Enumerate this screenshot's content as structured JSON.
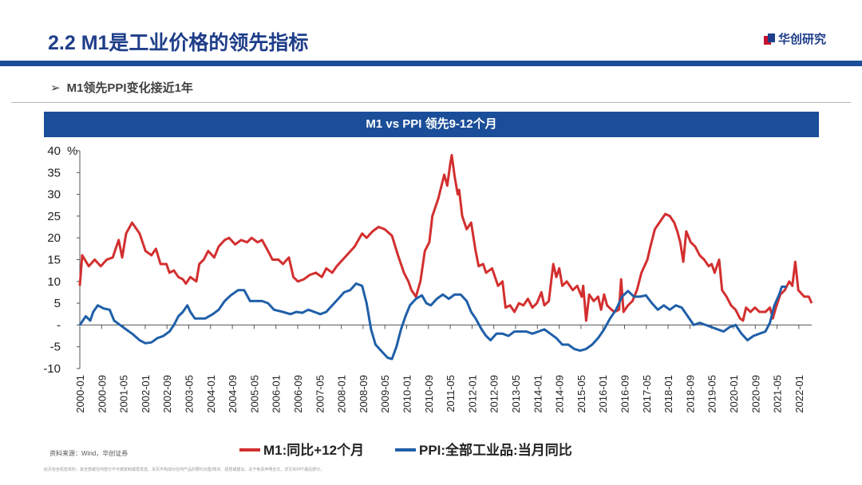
{
  "header": {
    "title": "2.2 M1是工业价格的领先指标",
    "logo_text": "华创研究",
    "subtitle": "M1领先PPI变化接近1年",
    "subtitle_marker": "➢"
  },
  "colors": {
    "brand": "#1b4e99",
    "title": "#1f3e8a",
    "m1": "#d32f2f",
    "ppi": "#1f5fa8"
  },
  "chart_data": {
    "type": "line",
    "title": "M1 vs PPI 领先9-12个月",
    "ylabel_unit": "%",
    "ylim": [
      -10,
      40
    ],
    "yticks": [
      {
        "v": 40,
        "label": "40"
      },
      {
        "v": 35,
        "label": "35"
      },
      {
        "v": 30,
        "label": "30"
      },
      {
        "v": 25,
        "label": "25"
      },
      {
        "v": 20,
        "label": "20"
      },
      {
        "v": 15,
        "label": "15"
      },
      {
        "v": 10,
        "label": "10"
      },
      {
        "v": 5,
        "label": "5"
      },
      {
        "v": 0,
        "label": "-"
      },
      {
        "v": -5,
        "label": "-5"
      },
      {
        "v": -10,
        "label": "-10"
      }
    ],
    "x_categories": [
      "2000-01",
      "2000-09",
      "2001-05",
      "2002-01",
      "2002-09",
      "2003-05",
      "2004-01",
      "2004-09",
      "2005-05",
      "2006-01",
      "2006-09",
      "2007-05",
      "2008-01",
      "2008-09",
      "2009-05",
      "2010-01",
      "2010-09",
      "2011-05",
      "2012-01",
      "2012-09",
      "2013-05",
      "2014-01",
      "2014-09",
      "2015-05",
      "2016-01",
      "2016-09",
      "2017-05",
      "2018-01",
      "2018-09",
      "2019-05",
      "2020-01",
      "2020-09",
      "2021-05",
      "2022-01"
    ],
    "series": [
      {
        "name": "M1:同比+12个月",
        "color": "#d32f2f",
        "points": [
          [
            2000.0,
            9
          ],
          [
            2000.08,
            16
          ],
          [
            2000.3,
            13.5
          ],
          [
            2000.5,
            15
          ],
          [
            2000.7,
            13.5
          ],
          [
            2000.9,
            15
          ],
          [
            2001.1,
            15.5
          ],
          [
            2001.3,
            19.5
          ],
          [
            2001.42,
            15.5
          ],
          [
            2001.55,
            21
          ],
          [
            2001.75,
            23.5
          ],
          [
            2002.0,
            21
          ],
          [
            2002.2,
            17
          ],
          [
            2002.4,
            16
          ],
          [
            2002.55,
            17.5
          ],
          [
            2002.7,
            14
          ],
          [
            2002.9,
            14
          ],
          [
            2003.0,
            12
          ],
          [
            2003.15,
            12.5
          ],
          [
            2003.3,
            11
          ],
          [
            2003.45,
            10.5
          ],
          [
            2003.55,
            9.5
          ],
          [
            2003.7,
            11
          ],
          [
            2003.9,
            10
          ],
          [
            2004.0,
            14
          ],
          [
            2004.15,
            15
          ],
          [
            2004.3,
            17
          ],
          [
            2004.5,
            15.5
          ],
          [
            2004.65,
            18
          ],
          [
            2004.85,
            19.5
          ],
          [
            2005.0,
            20
          ],
          [
            2005.2,
            18.5
          ],
          [
            2005.4,
            19.5
          ],
          [
            2005.6,
            19
          ],
          [
            2005.75,
            20
          ],
          [
            2005.95,
            19
          ],
          [
            2006.1,
            19.5
          ],
          [
            2006.3,
            17
          ],
          [
            2006.45,
            15
          ],
          [
            2006.65,
            15
          ],
          [
            2006.8,
            14
          ],
          [
            2007.0,
            15.5
          ],
          [
            2007.15,
            11
          ],
          [
            2007.3,
            10
          ],
          [
            2007.5,
            10.5
          ],
          [
            2007.7,
            11.5
          ],
          [
            2007.9,
            12
          ],
          [
            2008.1,
            11
          ],
          [
            2008.25,
            13
          ],
          [
            2008.45,
            12
          ],
          [
            2008.6,
            13.5
          ],
          [
            2008.8,
            15
          ],
          [
            2009.0,
            16.5
          ],
          [
            2009.2,
            18
          ],
          [
            2009.45,
            21
          ],
          [
            2009.6,
            20
          ],
          [
            2009.8,
            21.5
          ],
          [
            2010.0,
            22.5
          ],
          [
            2010.2,
            22
          ],
          [
            2010.45,
            20.5
          ],
          [
            2010.65,
            16
          ],
          [
            2010.85,
            12
          ],
          [
            2011.0,
            10
          ],
          [
            2011.1,
            8
          ],
          [
            2011.25,
            6.5
          ],
          [
            2011.4,
            10
          ],
          [
            2011.55,
            17
          ],
          [
            2011.7,
            19
          ],
          [
            2011.8,
            25
          ],
          [
            2012.0,
            29
          ],
          [
            2012.2,
            34.5
          ],
          [
            2012.3,
            32
          ],
          [
            2012.4,
            37
          ],
          [
            2012.45,
            39
          ],
          [
            2012.55,
            34
          ],
          [
            2012.65,
            30
          ],
          [
            2012.7,
            31
          ],
          [
            2012.8,
            25
          ],
          [
            2012.95,
            22
          ],
          [
            2013.1,
            23.5
          ],
          [
            2013.25,
            17
          ],
          [
            2013.35,
            13.5
          ],
          [
            2013.5,
            14
          ],
          [
            2013.6,
            12
          ],
          [
            2013.8,
            13
          ],
          [
            2014.0,
            9
          ],
          [
            2014.15,
            10
          ],
          [
            2014.25,
            4
          ],
          [
            2014.4,
            4.5
          ],
          [
            2014.55,
            3
          ],
          [
            2014.7,
            5
          ],
          [
            2014.85,
            4.5
          ],
          [
            2015.0,
            6
          ],
          [
            2015.15,
            4
          ],
          [
            2015.3,
            5
          ],
          [
            2015.45,
            7.5
          ],
          [
            2015.55,
            4.5
          ],
          [
            2015.7,
            5.5
          ],
          [
            2015.85,
            14
          ],
          [
            2015.95,
            11
          ],
          [
            2016.05,
            13
          ],
          [
            2016.15,
            9
          ],
          [
            2016.3,
            10
          ],
          [
            2016.5,
            8
          ],
          [
            2016.65,
            9
          ],
          [
            2016.8,
            6.5
          ],
          [
            2016.85,
            9
          ],
          [
            2016.95,
            1
          ],
          [
            2017.05,
            7
          ],
          [
            2017.2,
            5.5
          ],
          [
            2017.35,
            6.5
          ],
          [
            2017.45,
            3.5
          ],
          [
            2017.55,
            7
          ],
          [
            2017.65,
            4.5
          ],
          [
            2017.8,
            3.5
          ],
          [
            2017.9,
            3
          ],
          [
            2018.05,
            3.5
          ],
          [
            2018.12,
            10.5
          ],
          [
            2018.2,
            3
          ],
          [
            2018.35,
            4.5
          ],
          [
            2018.5,
            5.5
          ],
          [
            2018.65,
            8
          ],
          [
            2018.8,
            12
          ],
          [
            2019.0,
            15
          ],
          [
            2019.1,
            18
          ],
          [
            2019.25,
            22
          ],
          [
            2019.45,
            24
          ],
          [
            2019.6,
            25.5
          ],
          [
            2019.75,
            25
          ],
          [
            2019.9,
            23.5
          ],
          [
            2020.0,
            21.5
          ],
          [
            2020.1,
            19
          ],
          [
            2020.2,
            14.5
          ],
          [
            2020.3,
            21.5
          ],
          [
            2020.45,
            19
          ],
          [
            2020.6,
            18
          ],
          [
            2020.75,
            16
          ],
          [
            2020.9,
            15
          ],
          [
            2021.05,
            13.5
          ],
          [
            2021.15,
            14
          ],
          [
            2021.25,
            12
          ],
          [
            2021.4,
            15
          ],
          [
            2021.5,
            8
          ],
          [
            2021.65,
            6.5
          ],
          [
            2021.8,
            4.5
          ],
          [
            2021.95,
            3.5
          ],
          [
            2022.1,
            1.5
          ],
          [
            2022.2,
            1
          ],
          [
            2022.3,
            4
          ],
          [
            2022.45,
            3
          ],
          [
            2022.6,
            4
          ],
          [
            2022.75,
            3
          ],
          [
            2022.95,
            3
          ],
          [
            2023.1,
            4
          ],
          [
            2023.2,
            1.5
          ],
          [
            2023.3,
            4
          ],
          [
            2023.45,
            7
          ],
          [
            2023.6,
            8
          ],
          [
            2023.75,
            10
          ],
          [
            2023.85,
            9
          ],
          [
            2023.95,
            14.5
          ],
          [
            2024.05,
            8
          ],
          [
            2024.25,
            6.5
          ],
          [
            2024.4,
            6.5
          ],
          [
            2024.5,
            5
          ]
        ]
      },
      {
        "name": "PPI:全部工业品:当月同比",
        "color": "#1f5fa8",
        "points": [
          [
            2000.0,
            0
          ],
          [
            2000.2,
            2
          ],
          [
            2000.35,
            1
          ],
          [
            2000.45,
            3
          ],
          [
            2000.6,
            4.5
          ],
          [
            2000.8,
            3.8
          ],
          [
            2001.0,
            3.5
          ],
          [
            2001.15,
            1
          ],
          [
            2001.35,
            0
          ],
          [
            2001.55,
            -1
          ],
          [
            2001.75,
            -2
          ],
          [
            2002.0,
            -3.5
          ],
          [
            2002.2,
            -4.2
          ],
          [
            2002.4,
            -4
          ],
          [
            2002.6,
            -3
          ],
          [
            2002.8,
            -2.5
          ],
          [
            2003.0,
            -1.5
          ],
          [
            2003.15,
            0
          ],
          [
            2003.3,
            2
          ],
          [
            2003.45,
            3
          ],
          [
            2003.6,
            4.5
          ],
          [
            2003.7,
            3
          ],
          [
            2003.85,
            1.5
          ],
          [
            2004.0,
            1.5
          ],
          [
            2004.2,
            1.5
          ],
          [
            2004.45,
            2.5
          ],
          [
            2004.65,
            3.5
          ],
          [
            2004.85,
            5.5
          ],
          [
            2005.05,
            6.8
          ],
          [
            2005.3,
            8
          ],
          [
            2005.5,
            8
          ],
          [
            2005.7,
            5.5
          ],
          [
            2005.9,
            5.5
          ],
          [
            2006.1,
            5.5
          ],
          [
            2006.3,
            5
          ],
          [
            2006.5,
            3.5
          ],
          [
            2006.8,
            3
          ],
          [
            2007.05,
            2.5
          ],
          [
            2007.25,
            3
          ],
          [
            2007.45,
            2.8
          ],
          [
            2007.65,
            3.5
          ],
          [
            2007.85,
            3
          ],
          [
            2008.05,
            2.5
          ],
          [
            2008.25,
            3
          ],
          [
            2008.45,
            4.5
          ],
          [
            2008.65,
            6
          ],
          [
            2008.85,
            7.5
          ],
          [
            2009.05,
            8
          ],
          [
            2009.25,
            9.5
          ],
          [
            2009.45,
            9
          ],
          [
            2009.6,
            5
          ],
          [
            2009.75,
            -1
          ],
          [
            2009.9,
            -4.5
          ],
          [
            2010.1,
            -6
          ],
          [
            2010.3,
            -7.5
          ],
          [
            2010.45,
            -7.8
          ],
          [
            2010.6,
            -5
          ],
          [
            2010.75,
            -1
          ],
          [
            2010.9,
            2
          ],
          [
            2011.05,
            4.5
          ],
          [
            2011.25,
            6
          ],
          [
            2011.45,
            6.8
          ],
          [
            2011.6,
            5
          ],
          [
            2011.75,
            4.5
          ],
          [
            2011.95,
            6
          ],
          [
            2012.15,
            7
          ],
          [
            2012.35,
            6
          ],
          [
            2012.55,
            7
          ],
          [
            2012.75,
            7
          ],
          [
            2012.95,
            5.5
          ],
          [
            2013.1,
            3
          ],
          [
            2013.25,
            1.5
          ],
          [
            2013.45,
            -1
          ],
          [
            2013.6,
            -2.5
          ],
          [
            2013.75,
            -3.5
          ],
          [
            2013.95,
            -2
          ],
          [
            2014.15,
            -2
          ],
          [
            2014.35,
            -2.5
          ],
          [
            2014.55,
            -1.5
          ],
          [
            2014.75,
            -1.5
          ],
          [
            2014.95,
            -1.5
          ],
          [
            2015.15,
            -2
          ],
          [
            2015.35,
            -1.5
          ],
          [
            2015.55,
            -1
          ],
          [
            2015.75,
            -2
          ],
          [
            2015.95,
            -3
          ],
          [
            2016.15,
            -4.5
          ],
          [
            2016.35,
            -4.5
          ],
          [
            2016.55,
            -5.5
          ],
          [
            2016.75,
            -5.9
          ],
          [
            2016.95,
            -5.5
          ],
          [
            2017.15,
            -4.5
          ],
          [
            2017.35,
            -3
          ],
          [
            2017.55,
            -1
          ],
          [
            2017.75,
            1.5
          ],
          [
            2017.95,
            3.5
          ],
          [
            2018.15,
            6.5
          ],
          [
            2018.35,
            7.8
          ],
          [
            2018.55,
            6.5
          ],
          [
            2018.75,
            6.5
          ],
          [
            2018.95,
            6.8
          ],
          [
            2019.15,
            5
          ],
          [
            2019.35,
            3.5
          ],
          [
            2019.55,
            4.5
          ],
          [
            2019.75,
            3.5
          ],
          [
            2019.95,
            4.5
          ],
          [
            2020.15,
            4
          ],
          [
            2020.35,
            2
          ],
          [
            2020.55,
            0
          ],
          [
            2020.75,
            0.5
          ],
          [
            2020.95,
            0
          ],
          [
            2021.15,
            -0.5
          ],
          [
            2021.35,
            -1
          ],
          [
            2021.55,
            -1.5
          ],
          [
            2021.75,
            -0.5
          ],
          [
            2021.95,
            0
          ],
          [
            2022.15,
            -2
          ],
          [
            2022.35,
            -3.5
          ],
          [
            2022.55,
            -2.5
          ],
          [
            2022.75,
            -2
          ],
          [
            2022.95,
            -1.5
          ],
          [
            2023.1,
            0.5
          ],
          [
            2023.25,
            4.5
          ],
          [
            2023.4,
            6.8
          ],
          [
            2023.5,
            8.8
          ],
          [
            2023.65,
            8.8
          ]
        ]
      }
    ],
    "legend": [
      "M1:同比+12个月",
      "PPI:全部工业品:当月同比"
    ],
    "legend_position": "bottom"
  },
  "footer": {
    "source": "资料来源：Wind，华创证券",
    "disclaimer": "此页包含机密资料，其全部或任何部分不可被复制或再发送。本页不构成对任何产品的要约出售/购买、招揽或建议。关于免责声明全文，详见本PPT最后部分。"
  }
}
